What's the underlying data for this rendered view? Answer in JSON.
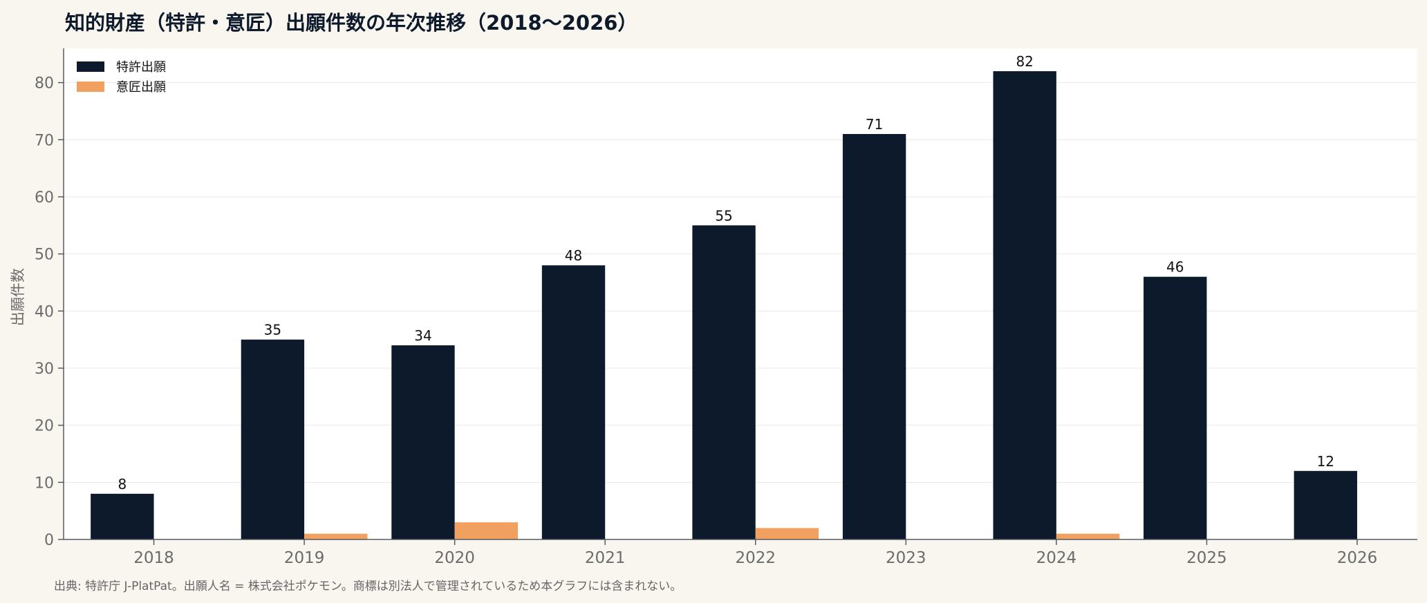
{
  "colors": {
    "patent": "#0c1a2b",
    "design": "#f2a060",
    "plot_bg": "#ffffff",
    "page_bg": "#f9f6f0",
    "grid": "#e8e8e8",
    "axis": "#555a63",
    "tick_text": "#6b6b6b"
  },
  "chart_data": {
    "type": "bar",
    "title": "知的財産（特許・意匠）出願件数の年次推移（2018〜2026）",
    "xlabel": "",
    "ylabel": "出願件数",
    "categories": [
      "2018",
      "2019",
      "2020",
      "2021",
      "2022",
      "2023",
      "2024",
      "2025",
      "2026"
    ],
    "series": [
      {
        "name": "特許出願",
        "values": [
          8,
          35,
          34,
          48,
          55,
          71,
          82,
          46,
          12
        ],
        "labels": [
          "8",
          "35",
          "34",
          "48",
          "55",
          "71",
          "82",
          "46",
          "12"
        ]
      },
      {
        "name": "意匠出願",
        "values": [
          0,
          1,
          3,
          0,
          2,
          0,
          1,
          0,
          0
        ]
      }
    ],
    "ylim": [
      0,
      86
    ],
    "yticks": [
      0,
      10,
      20,
      30,
      40,
      50,
      60,
      70,
      80
    ],
    "ytick_labels": [
      "0",
      "10",
      "20",
      "30",
      "40",
      "50",
      "60",
      "70",
      "80"
    ],
    "grid": "horizontal",
    "legend_position": "top-left"
  },
  "source_note": "出典: 特許庁 J-PlatPat。出願人名 = 株式会社ポケモン。商標は別法人で管理されているため本グラフには含まれない。"
}
